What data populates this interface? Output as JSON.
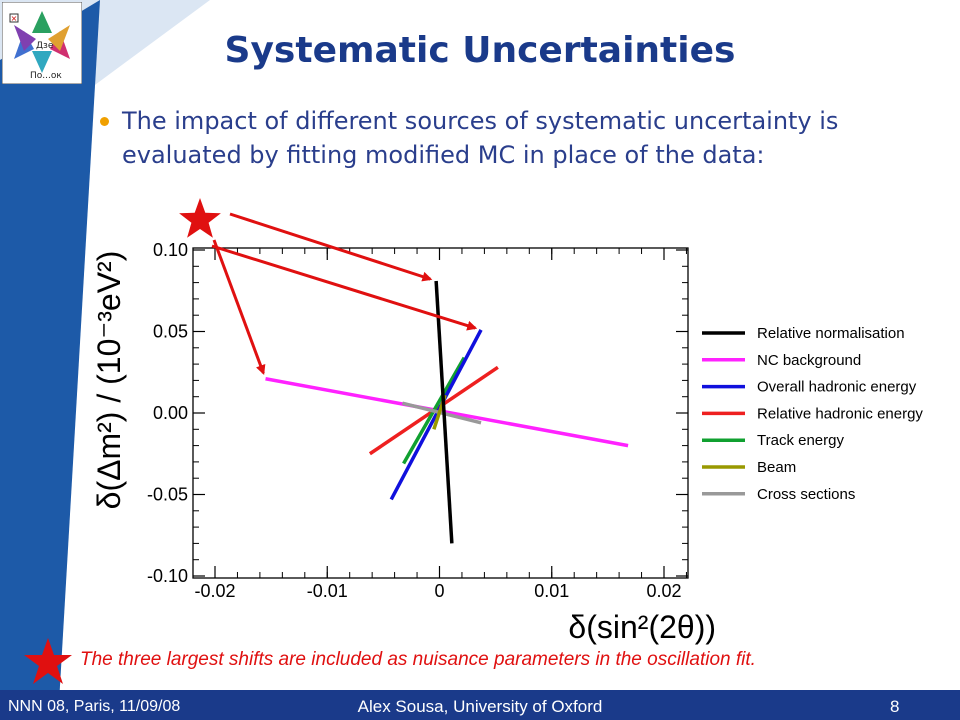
{
  "slide": {
    "title": "Systematic Uncertainties",
    "bullet": "The impact of different sources of systematic uncertainty is evaluated by fitting modified MC in place of the data:",
    "footnote": "The three largest shifts are included as nuisance parameters in the oscillation fit.",
    "footer_left": "NNN 08, Paris, 11/09/08",
    "footer_center": "Alex Sousa, University of Oxford",
    "page_number": "8",
    "logo_text_1": "Дзе",
    "logo_text_2": "По...ок"
  },
  "colors": {
    "title": "#1a3a8a",
    "bullet_text": "#2a3e8c",
    "bullet_dot": "#f0a000",
    "accent_red": "#e01010",
    "footer_bg": "#1a3a8a",
    "side_band": "#1d5aa8"
  },
  "chart_data": {
    "type": "line",
    "xlabel": "δ(sin²(2θ))",
    "ylabel": "δ(Δm²) / (10⁻³eV²)",
    "xlim": [
      -0.02,
      0.02
    ],
    "ylim": [
      -0.1,
      0.1
    ],
    "xticks": [
      -0.02,
      -0.01,
      0,
      0.01,
      0.02
    ],
    "xtick_labels": [
      "-0.02",
      "-0.01",
      "0",
      "0.01",
      "0.02"
    ],
    "yticks": [
      0.1,
      0.05,
      0,
      -0.05,
      -0.1
    ],
    "ytick_labels": [
      "0.10",
      "0.05",
      "0.00",
      "-0.05",
      "-0.10"
    ],
    "legend_position": "right",
    "series": [
      {
        "name": "Relative normalisation",
        "color": "#000000",
        "x": [
          -0.0003,
          0.0011
        ],
        "y": [
          0.081,
          -0.08
        ],
        "starred": true
      },
      {
        "name": "NC background",
        "color": "#ff22ff",
        "x": [
          -0.0155,
          0.0168
        ],
        "y": [
          0.021,
          -0.02
        ],
        "starred": true
      },
      {
        "name": "Overall hadronic energy",
        "color": "#1010dd",
        "x": [
          -0.0043,
          0.0037
        ],
        "y": [
          -0.053,
          0.051
        ],
        "starred": true
      },
      {
        "name": "Relative hadronic energy",
        "color": "#ee2020",
        "x": [
          -0.0062,
          0.0052
        ],
        "y": [
          -0.025,
          0.028
        ],
        "starred": false
      },
      {
        "name": "Track energy",
        "color": "#10a030",
        "x": [
          -0.0032,
          0.0022
        ],
        "y": [
          -0.031,
          0.034
        ],
        "starred": false
      },
      {
        "name": "Beam",
        "color": "#999900",
        "x": [
          -0.0005,
          0.0005
        ],
        "y": [
          -0.01,
          0.011
        ],
        "starred": false
      },
      {
        "name": "Cross sections",
        "color": "#999999",
        "x": [
          -0.0033,
          0.0037
        ],
        "y": [
          0.006,
          -0.006
        ],
        "starred": false
      }
    ]
  }
}
